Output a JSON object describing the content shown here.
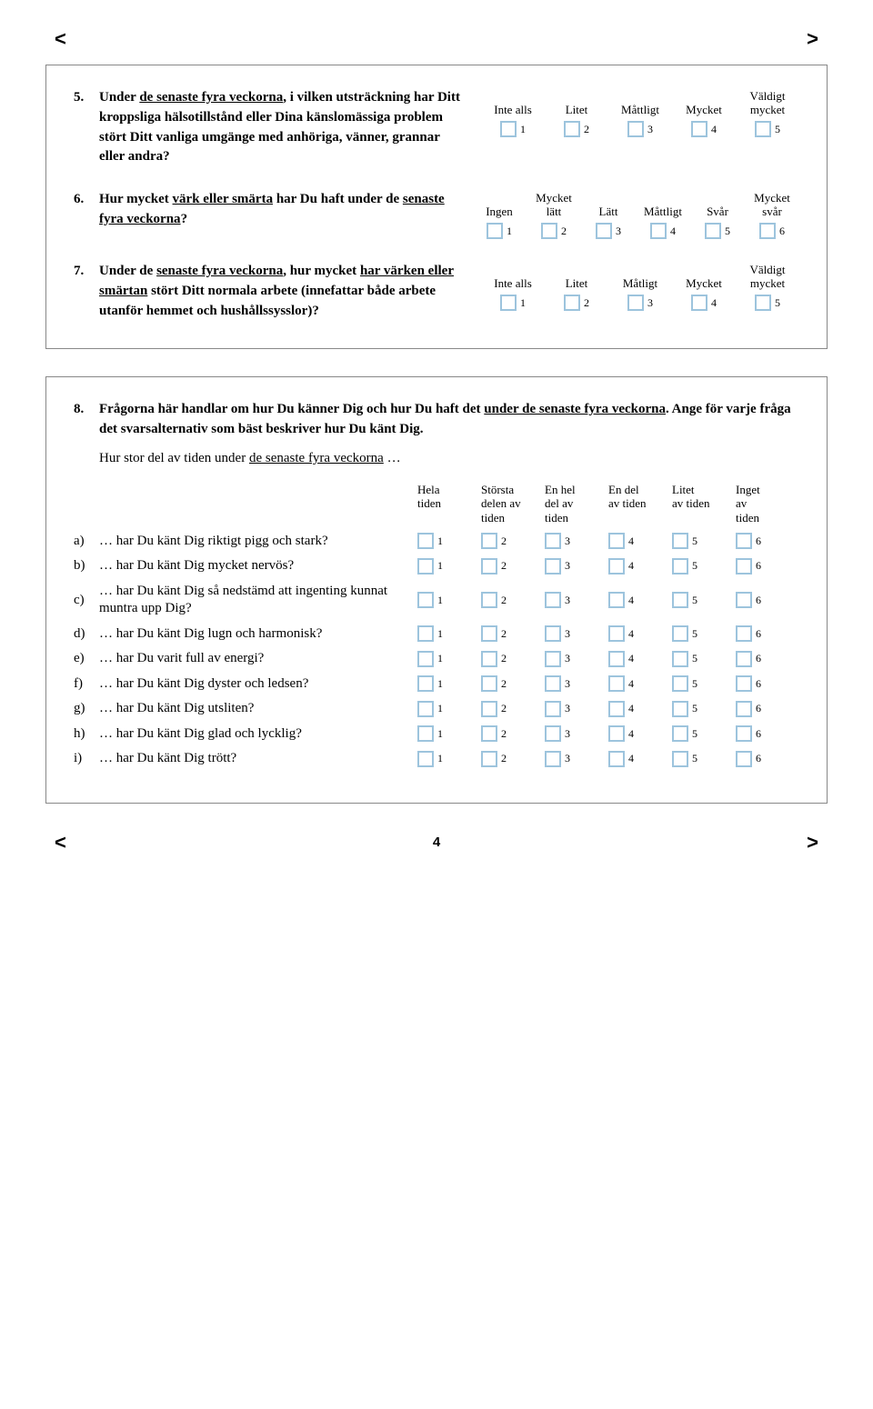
{
  "arrows": {
    "left": "<",
    "right": ">"
  },
  "page_number": "4",
  "box1": {
    "q5": {
      "num": "5.",
      "text_prefix": "Under ",
      "text_u1": "de senaste fyra veckorna",
      "text_mid": ", i vilken utsträckning har Ditt kroppsliga hälsotillstånd eller Dina känslomässiga problem stört Ditt vanliga umgänge med anhöriga, vänner, grannar eller andra?",
      "opts": [
        {
          "label_l1": "",
          "label_l2": "Inte alls",
          "n": "1"
        },
        {
          "label_l1": "",
          "label_l2": "Litet",
          "n": "2"
        },
        {
          "label_l1": "",
          "label_l2": "Måttligt",
          "n": "3"
        },
        {
          "label_l1": "",
          "label_l2": "Mycket",
          "n": "4"
        },
        {
          "label_l1": "Väldigt",
          "label_l2": "mycket",
          "n": "5"
        }
      ]
    },
    "q6": {
      "num": "6.",
      "text_prefix": "Hur mycket ",
      "text_u1": "värk eller smärta",
      "text_mid": " har Du haft under de ",
      "text_u2": "senaste fyra veckorna",
      "text_suffix": "?",
      "opts": [
        {
          "label_l1": "",
          "label_l2": "Ingen",
          "n": "1"
        },
        {
          "label_l1": "Mycket",
          "label_l2": "lätt",
          "n": "2"
        },
        {
          "label_l1": "",
          "label_l2": "Lätt",
          "n": "3"
        },
        {
          "label_l1": "",
          "label_l2": "Måttligt",
          "n": "4"
        },
        {
          "label_l1": "",
          "label_l2": "Svår",
          "n": "5"
        },
        {
          "label_l1": "Mycket",
          "label_l2": "svår",
          "n": "6"
        }
      ]
    },
    "q7": {
      "num": "7.",
      "text_prefix": "Under de ",
      "text_u1": "senaste fyra veckorna",
      "text_mid": ", hur mycket ",
      "text_u2": "har värken eller smärtan",
      "text_suffix": " stört Ditt normala arbete (innefattar både arbete utanför hemmet och hushållssysslor)?",
      "opts": [
        {
          "label_l1": "",
          "label_l2": "Inte alls",
          "n": "1"
        },
        {
          "label_l1": "",
          "label_l2": "Litet",
          "n": "2"
        },
        {
          "label_l1": "",
          "label_l2": "Måtligt",
          "n": "3"
        },
        {
          "label_l1": "",
          "label_l2": "Mycket",
          "n": "4"
        },
        {
          "label_l1": "Väldigt",
          "label_l2": "mycket",
          "n": "5"
        }
      ]
    }
  },
  "box2": {
    "q8": {
      "num": "8.",
      "intro_prefix": "Frågorna här handlar om hur Du känner Dig och hur Du haft det ",
      "intro_u": "under de senaste fyra veckorna",
      "intro_suffix": ". Ange för varje fråga det svarsalternativ som bäst beskriver hur Du känt Dig.",
      "sub_prefix": "Hur stor del av tiden under ",
      "sub_u": "de senaste fyra veckorna",
      "sub_suffix": " …",
      "headers": [
        {
          "l1": "Hela",
          "l2": "tiden"
        },
        {
          "l1": "Största",
          "l2": "delen av",
          "l3": "tiden"
        },
        {
          "l1": "En hel",
          "l2": "del av",
          "l3": "tiden"
        },
        {
          "l1": "En del",
          "l2": "av tiden"
        },
        {
          "l1": "Litet",
          "l2": "av tiden"
        },
        {
          "l1": "Inget",
          "l2": "av",
          "l3": "tiden"
        }
      ],
      "items": [
        {
          "letter": "a)",
          "text": "… har Du känt Dig riktigt pigg och stark?"
        },
        {
          "letter": "b)",
          "text": "… har Du känt Dig mycket nervös?"
        },
        {
          "letter": "c)",
          "text": "… har Du känt Dig så nedstämd att ingenting kunnat muntra upp Dig?"
        },
        {
          "letter": "d)",
          "text": "… har Du känt Dig lugn och harmonisk?"
        },
        {
          "letter": "e)",
          "text": "… har Du varit full av energi?"
        },
        {
          "letter": "f)",
          "text": "… har Du känt Dig dyster och ledsen?"
        },
        {
          "letter": "g)",
          "text": "… har Du känt Dig utsliten?"
        },
        {
          "letter": "h)",
          "text": "… har Du känt Dig glad och lycklig?"
        },
        {
          "letter": "i)",
          "text": "… har Du känt Dig trött?"
        }
      ],
      "nums": [
        "1",
        "2",
        "3",
        "4",
        "5",
        "6"
      ]
    }
  }
}
